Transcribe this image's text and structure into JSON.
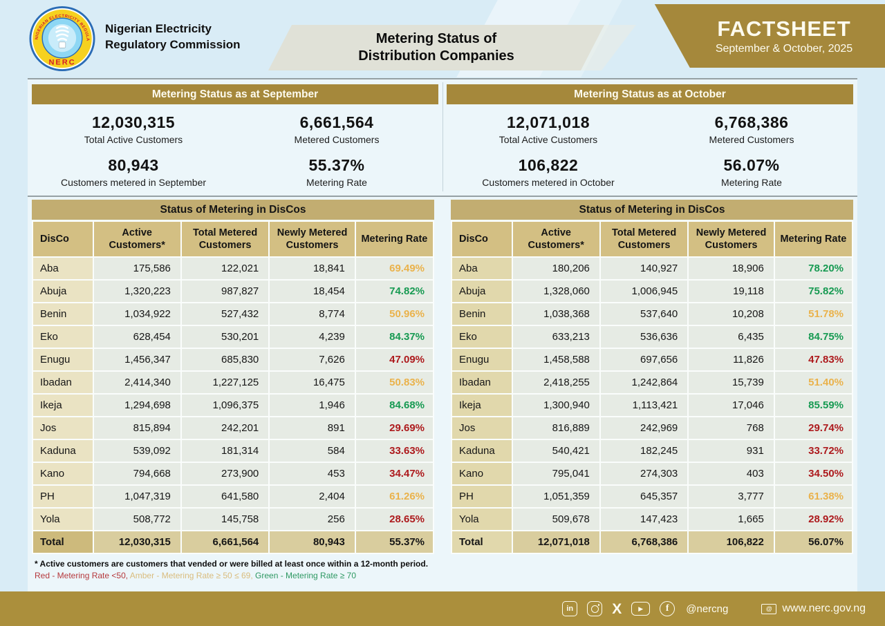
{
  "theme": {
    "gold": "#a5883b",
    "table_title_tan": "#c2ad71",
    "header_cell_tan": "#d3bf83",
    "disco_cell_cream": "#eae3c3",
    "data_cell": "#e6ebe4",
    "rate_green": "#179a52",
    "rate_amber": "#eab24b",
    "rate_red": "#ad1a1d",
    "page_bg": "#d9ecf6"
  },
  "header": {
    "org_name_line1": "Nigerian Electricity",
    "org_name_line2": "Regulatory Commission",
    "logo_text": "NERC",
    "logo_ring_text": "NIGERIAN ELECTRICITY REGULATORY COMMISSION",
    "title_line1": "Metering Status of",
    "title_line2": "Distribution Companies",
    "factsheet_label": "FACTSHEET",
    "factsheet_period": "September & October, 2025"
  },
  "summaries": [
    {
      "title": "Metering Status as at September",
      "stats": [
        {
          "value": "12,030,315",
          "label": "Total Active Customers"
        },
        {
          "value": "6,661,564",
          "label": "Metered Customers"
        },
        {
          "value": "80,943",
          "label": "Customers metered in September"
        },
        {
          "value": "55.37%",
          "label": "Metering Rate"
        }
      ]
    },
    {
      "title": "Metering Status as at October",
      "stats": [
        {
          "value": "12,071,018",
          "label": "Total Active Customers"
        },
        {
          "value": "6,768,386",
          "label": "Metered Customers"
        },
        {
          "value": "106,822",
          "label": "Customers metered in October"
        },
        {
          "value": "56.07%",
          "label": "Metering Rate"
        }
      ]
    }
  ],
  "tables": [
    {
      "title": "Status of Metering in DisCos",
      "columns": [
        "DisCo",
        "Active Customers*",
        "Total Metered Customers",
        "Newly Metered Customers",
        "Metering Rate"
      ],
      "rows": [
        {
          "disco": "Aba",
          "active": "175,586",
          "metered": "122,021",
          "newly": "18,841",
          "rate": "69.49%",
          "rate_color": "amber"
        },
        {
          "disco": "Abuja",
          "active": "1,320,223",
          "metered": "987,827",
          "newly": "18,454",
          "rate": "74.82%",
          "rate_color": "green"
        },
        {
          "disco": "Benin",
          "active": "1,034,922",
          "metered": "527,432",
          "newly": "8,774",
          "rate": "50.96%",
          "rate_color": "amber"
        },
        {
          "disco": "Eko",
          "active": "628,454",
          "metered": "530,201",
          "newly": "4,239",
          "rate": "84.37%",
          "rate_color": "green"
        },
        {
          "disco": "Enugu",
          "active": "1,456,347",
          "metered": "685,830",
          "newly": "7,626",
          "rate": "47.09%",
          "rate_color": "red"
        },
        {
          "disco": "Ibadan",
          "active": "2,414,340",
          "metered": "1,227,125",
          "newly": "16,475",
          "rate": "50.83%",
          "rate_color": "amber"
        },
        {
          "disco": "Ikeja",
          "active": "1,294,698",
          "metered": "1,096,375",
          "newly": "1,946",
          "rate": "84.68%",
          "rate_color": "green"
        },
        {
          "disco": "Jos",
          "active": "815,894",
          "metered": "242,201",
          "newly": "891",
          "rate": "29.69%",
          "rate_color": "red"
        },
        {
          "disco": "Kaduna",
          "active": "539,092",
          "metered": "181,314",
          "newly": "584",
          "rate": "33.63%",
          "rate_color": "red"
        },
        {
          "disco": "Kano",
          "active": "794,668",
          "metered": "273,900",
          "newly": "453",
          "rate": "34.47%",
          "rate_color": "red"
        },
        {
          "disco": "PH",
          "active": "1,047,319",
          "metered": "641,580",
          "newly": "2,404",
          "rate": "61.26%",
          "rate_color": "amber"
        },
        {
          "disco": "Yola",
          "active": "508,772",
          "metered": "145,758",
          "newly": "256",
          "rate": "28.65%",
          "rate_color": "red"
        }
      ],
      "total": {
        "disco": "Total",
        "active": "12,030,315",
        "metered": "6,661,564",
        "newly": "80,943",
        "rate": "55.37%"
      }
    },
    {
      "title": "Status of Metering in DisCos",
      "columns": [
        "DisCo",
        "Active Customers*",
        "Total Metered Customers",
        "Newly Metered Customers",
        "Metering Rate"
      ],
      "rows": [
        {
          "disco": "Aba",
          "active": "180,206",
          "metered": "140,927",
          "newly": "18,906",
          "rate": "78.20%",
          "rate_color": "green"
        },
        {
          "disco": "Abuja",
          "active": "1,328,060",
          "metered": "1,006,945",
          "newly": "19,118",
          "rate": "75.82%",
          "rate_color": "green"
        },
        {
          "disco": "Benin",
          "active": "1,038,368",
          "metered": "537,640",
          "newly": "10,208",
          "rate": "51.78%",
          "rate_color": "amber"
        },
        {
          "disco": "Eko",
          "active": "633,213",
          "metered": "536,636",
          "newly": "6,435",
          "rate": "84.75%",
          "rate_color": "green"
        },
        {
          "disco": "Enugu",
          "active": "1,458,588",
          "metered": "697,656",
          "newly": "11,826",
          "rate": "47.83%",
          "rate_color": "red"
        },
        {
          "disco": "Ibadan",
          "active": "2,418,255",
          "metered": "1,242,864",
          "newly": "15,739",
          "rate": "51.40%",
          "rate_color": "amber"
        },
        {
          "disco": "Ikeja",
          "active": "1,300,940",
          "metered": "1,113,421",
          "newly": "17,046",
          "rate": "85.59%",
          "rate_color": "green"
        },
        {
          "disco": "Jos",
          "active": "816,889",
          "metered": "242,969",
          "newly": "768",
          "rate": "29.74%",
          "rate_color": "red"
        },
        {
          "disco": "Kaduna",
          "active": "540,421",
          "metered": "182,245",
          "newly": "931",
          "rate": "33.72%",
          "rate_color": "red"
        },
        {
          "disco": "Kano",
          "active": "795,041",
          "metered": "274,303",
          "newly": "403",
          "rate": "34.50%",
          "rate_color": "red"
        },
        {
          "disco": "PH",
          "active": "1,051,359",
          "metered": "645,357",
          "newly": "3,777",
          "rate": "61.38%",
          "rate_color": "amber"
        },
        {
          "disco": "Yola",
          "active": "509,678",
          "metered": "147,423",
          "newly": "1,665",
          "rate": "28.92%",
          "rate_color": "red"
        }
      ],
      "total": {
        "disco": "Total",
        "active": "12,071,018",
        "metered": "6,768,386",
        "newly": "106,822",
        "rate": "56.07%"
      }
    }
  ],
  "footnotes": {
    "asterisk": "* Active customers are customers that vended or were billed at least once within a 12-month period.",
    "legend": [
      {
        "text": "Red - Metering Rate <50,",
        "color": "red"
      },
      {
        "text": "Amber - Metering Rate ≥ 50 ≤ 69,",
        "color": "amber"
      },
      {
        "text": "Green - Metering Rate ≥ 70",
        "color": "green"
      }
    ]
  },
  "footer": {
    "social_handle": "@nercng",
    "website": "www.nerc.gov.ng",
    "youtube_play": "▶",
    "linkedin_glyph": "in",
    "x_glyph": "X",
    "facebook_glyph": "f",
    "web_glyph": "@"
  }
}
